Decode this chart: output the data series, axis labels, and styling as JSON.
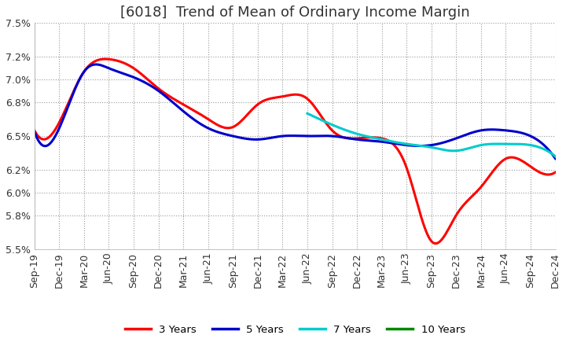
{
  "title": "[6018]  Trend of Mean of Ordinary Income Margin",
  "ylim": [
    5.5,
    7.5
  ],
  "yticks": [
    5.5,
    5.8,
    6.0,
    6.2,
    6.5,
    6.8,
    7.0,
    7.2,
    7.5
  ],
  "ytick_labels": [
    "5.5%",
    "5.8%",
    "6.0%",
    "6.2%",
    "6.5%",
    "6.8%",
    "7.0%",
    "7.2%",
    "7.5%"
  ],
  "x_labels": [
    "Sep-19",
    "Dec-19",
    "Mar-20",
    "Jun-20",
    "Sep-20",
    "Dec-20",
    "Mar-21",
    "Jun-21",
    "Sep-21",
    "Dec-21",
    "Mar-22",
    "Jun-22",
    "Sep-22",
    "Dec-22",
    "Mar-23",
    "Jun-23",
    "Sep-23",
    "Dec-23",
    "Mar-24",
    "Jun-24",
    "Sep-24",
    "Dec-24"
  ],
  "series": {
    "3 Years": {
      "color": "#FF0000",
      "values": [
        6.55,
        6.62,
        7.07,
        7.18,
        7.1,
        6.92,
        6.78,
        6.65,
        6.58,
        6.78,
        6.85,
        6.83,
        6.55,
        6.48,
        6.48,
        6.22,
        5.57,
        5.8,
        6.05,
        6.3,
        6.23,
        6.18
      ]
    },
    "5 Years": {
      "color": "#0000CC",
      "values": [
        6.54,
        6.57,
        7.07,
        7.1,
        7.02,
        6.9,
        6.72,
        6.57,
        6.5,
        6.47,
        6.5,
        6.5,
        6.5,
        6.47,
        6.45,
        6.42,
        6.42,
        6.48,
        6.55,
        6.55,
        6.5,
        6.3
      ]
    },
    "7 Years": {
      "color": "#00CCCC",
      "values": [
        null,
        null,
        null,
        null,
        null,
        null,
        null,
        null,
        null,
        null,
        null,
        6.7,
        6.6,
        6.52,
        6.47,
        6.43,
        6.4,
        6.37,
        6.42,
        6.43,
        6.42,
        6.32
      ]
    },
    "10 Years": {
      "color": "#008800",
      "values": [
        null,
        null,
        null,
        null,
        null,
        null,
        null,
        null,
        null,
        null,
        null,
        null,
        null,
        null,
        null,
        null,
        null,
        null,
        null,
        null,
        null,
        null
      ]
    }
  },
  "legend_labels": [
    "3 Years",
    "5 Years",
    "7 Years",
    "10 Years"
  ],
  "legend_colors": [
    "#FF0000",
    "#0000CC",
    "#00CCCC",
    "#008800"
  ],
  "background_color": "#FFFFFF",
  "grid_color": "#999999",
  "title_fontsize": 13,
  "tick_fontsize": 9,
  "line_width": 2.2
}
